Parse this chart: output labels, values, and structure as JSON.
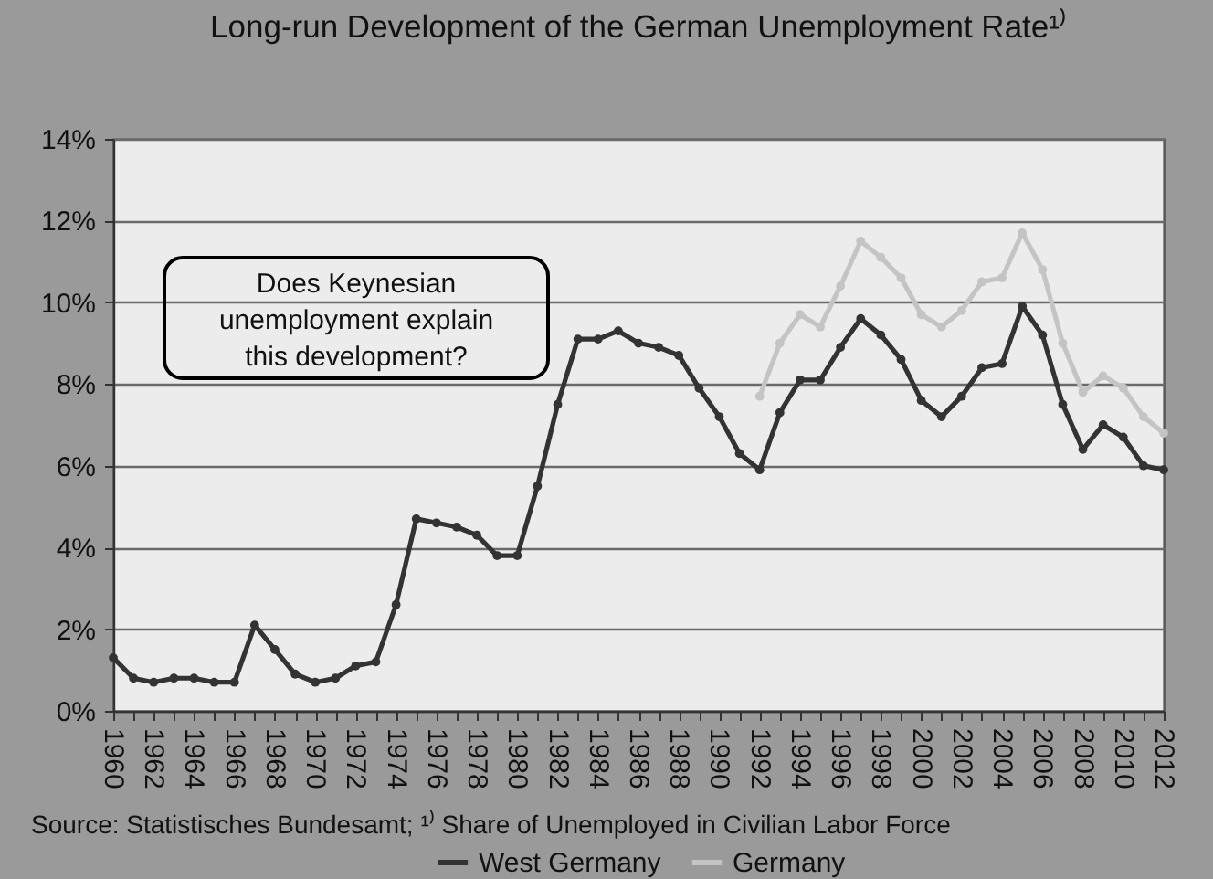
{
  "chart_data": {
    "type": "line",
    "title": "Long-run Development of the German Unemployment Rate¹⁾",
    "annotations": [
      "Does Keynesian unemployment explain this development?",
      "Source: Statistisches Bundesamt; ¹⁾ Share of Unemployed in Civilian Labor Force"
    ],
    "x": [
      1960,
      1961,
      1962,
      1963,
      1964,
      1965,
      1966,
      1967,
      1968,
      1969,
      1970,
      1971,
      1972,
      1973,
      1974,
      1975,
      1976,
      1977,
      1978,
      1979,
      1980,
      1981,
      1982,
      1983,
      1984,
      1985,
      1986,
      1987,
      1988,
      1989,
      1990,
      1991,
      1992,
      1993,
      1994,
      1995,
      1996,
      1997,
      1998,
      1999,
      2000,
      2001,
      2002,
      2003,
      2004,
      2005,
      2006,
      2007,
      2008,
      2009,
      2010,
      2011,
      2012
    ],
    "series": [
      {
        "name": "West Germany",
        "color": "#333333",
        "values": [
          1.3,
          0.8,
          0.7,
          0.8,
          0.8,
          0.7,
          0.7,
          2.1,
          1.5,
          0.9,
          0.7,
          0.8,
          1.1,
          1.2,
          2.6,
          4.7,
          4.6,
          4.5,
          4.3,
          3.8,
          3.8,
          5.5,
          7.5,
          9.1,
          9.1,
          9.3,
          9.0,
          8.9,
          8.7,
          7.9,
          7.2,
          6.3,
          5.9,
          7.3,
          8.1,
          8.1,
          8.9,
          9.6,
          9.2,
          8.6,
          7.6,
          7.2,
          7.7,
          8.4,
          8.5,
          9.9,
          9.2,
          7.5,
          6.4,
          7.0,
          6.7,
          6.0,
          5.9
        ]
      },
      {
        "name": "Germany",
        "color": "#c4c4c4",
        "x": [
          1992,
          1993,
          1994,
          1995,
          1996,
          1997,
          1998,
          1999,
          2000,
          2001,
          2002,
          2003,
          2004,
          2005,
          2006,
          2007,
          2008,
          2009,
          2010,
          2011,
          2012
        ],
        "values": [
          7.7,
          9.0,
          9.7,
          9.4,
          10.4,
          11.5,
          11.1,
          10.6,
          9.7,
          9.4,
          9.8,
          10.5,
          10.6,
          11.7,
          10.8,
          9.0,
          7.8,
          8.2,
          7.9,
          7.2,
          6.8
        ]
      }
    ],
    "xlim": [
      1960,
      2012
    ],
    "xticks": [
      1960,
      {
        "value": 1961,
        "label": null
      },
      1962,
      {
        "value": 1963,
        "label": null
      },
      1964,
      {
        "value": 1965,
        "label": null
      },
      1966,
      {
        "value": 1967,
        "label": null
      },
      1968,
      {
        "value": 1969,
        "label": null
      },
      1970,
      {
        "value": 1971,
        "label": null
      },
      1972,
      {
        "value": 1973,
        "label": null
      },
      1974,
      {
        "value": 1975,
        "label": null
      },
      1976,
      {
        "value": 1977,
        "label": null
      },
      1978,
      {
        "value": 1979,
        "label": null
      },
      1980,
      {
        "value": 1981,
        "label": null
      },
      1982,
      {
        "value": 1983,
        "label": null
      },
      1984,
      {
        "value": 1985,
        "label": null
      },
      1986,
      {
        "value": 1987,
        "label": null
      },
      1988,
      {
        "value": 1989,
        "label": null
      },
      1990,
      {
        "value": 1991,
        "label": null
      },
      1992,
      {
        "value": 1993,
        "label": null
      },
      1994,
      {
        "value": 1995,
        "label": null
      },
      1996,
      {
        "value": 1997,
        "label": null
      },
      1998,
      {
        "value": 1999,
        "label": null
      },
      2000,
      {
        "value": 2001,
        "label": null
      },
      2002,
      {
        "value": 2003,
        "label": null
      },
      2004,
      {
        "value": 2005,
        "label": null
      },
      2006,
      {
        "value": 2007,
        "label": null
      },
      2008,
      {
        "value": 2009,
        "label": null
      },
      2010,
      {
        "value": 2011,
        "label": null
      },
      2012
    ],
    "ylim": [
      0,
      14
    ],
    "yticks": [
      {
        "value": 0,
        "label": "0%"
      },
      {
        "value": 2,
        "label": "2%"
      },
      {
        "value": 4,
        "label": "4%"
      },
      {
        "value": 6,
        "label": "6%"
      },
      {
        "value": 8,
        "label": "8%"
      },
      {
        "value": 10,
        "label": "10%"
      },
      {
        "value": 12,
        "label": "12%"
      },
      {
        "value": 14,
        "label": "14%"
      }
    ],
    "grid": "y",
    "legend": "bottom",
    "marker": "circle",
    "line_style": "solid"
  }
}
